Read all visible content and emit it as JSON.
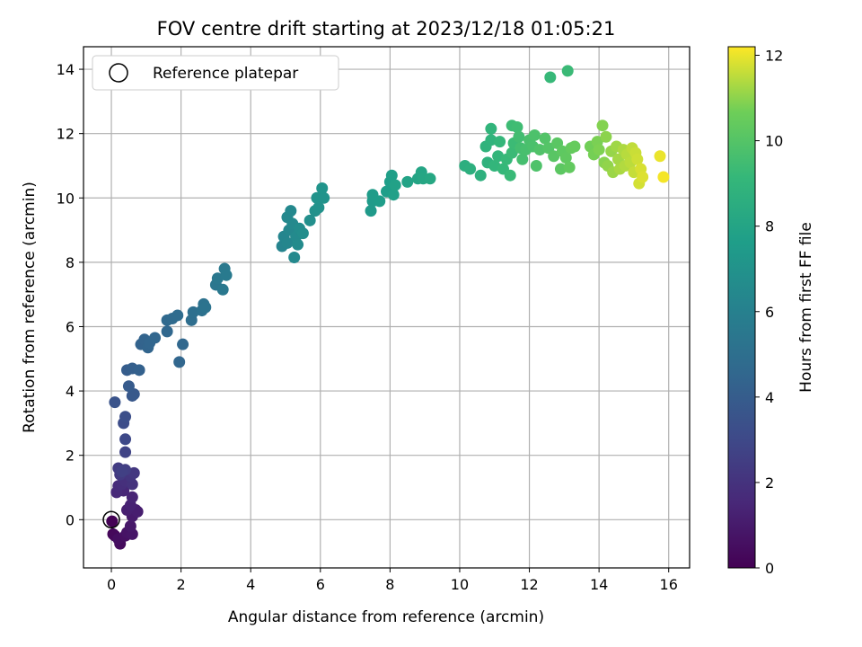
{
  "chart_data": {
    "type": "scatter",
    "title": "FOV centre drift starting at 2023/12/18 01:05:21",
    "xlabel": "Angular distance from reference (arcmin)",
    "ylabel": "Rotation from reference (arcmin)",
    "xlim": [
      -0.8,
      16.6
    ],
    "ylim": [
      -1.5,
      14.7
    ],
    "xticks": [
      0,
      2,
      4,
      6,
      8,
      10,
      12,
      14,
      16
    ],
    "yticks": [
      0,
      2,
      4,
      6,
      8,
      10,
      12,
      14
    ],
    "grid": true,
    "legend": {
      "position": "top-left",
      "entries": [
        "Reference platepar"
      ]
    },
    "reference_point": {
      "x": 0,
      "y": 0
    },
    "colorbar": {
      "label": "Hours from first FF file",
      "range": [
        0,
        12.2
      ],
      "ticks": [
        0,
        2,
        4,
        6,
        8,
        10,
        12
      ],
      "colormap": "viridis"
    },
    "points": [
      {
        "x": 0.02,
        "y": -0.05,
        "c": 0.05
      },
      {
        "x": 0.05,
        "y": -0.45,
        "c": 0.2
      },
      {
        "x": 0.1,
        "y": -0.5,
        "c": 0.3
      },
      {
        "x": 0.25,
        "y": -0.75,
        "c": 0.4
      },
      {
        "x": 0.2,
        "y": -0.6,
        "c": 0.5
      },
      {
        "x": 0.4,
        "y": -0.5,
        "c": 0.6
      },
      {
        "x": 0.45,
        "y": -0.4,
        "c": 0.7
      },
      {
        "x": 0.6,
        "y": -0.45,
        "c": 0.8
      },
      {
        "x": 0.55,
        "y": -0.2,
        "c": 0.9
      },
      {
        "x": 0.6,
        "y": 0.1,
        "c": 1.0
      },
      {
        "x": 0.7,
        "y": 0.3,
        "c": 1.1
      },
      {
        "x": 0.75,
        "y": 0.25,
        "c": 1.15
      },
      {
        "x": 0.45,
        "y": 0.3,
        "c": 1.2
      },
      {
        "x": 0.55,
        "y": 0.45,
        "c": 1.3
      },
      {
        "x": 0.6,
        "y": 0.7,
        "c": 1.4
      },
      {
        "x": 0.35,
        "y": 0.9,
        "c": 1.5
      },
      {
        "x": 0.15,
        "y": 0.85,
        "c": 1.6
      },
      {
        "x": 0.2,
        "y": 1.05,
        "c": 1.7
      },
      {
        "x": 0.3,
        "y": 1.1,
        "c": 1.8
      },
      {
        "x": 0.4,
        "y": 1.2,
        "c": 1.9
      },
      {
        "x": 0.6,
        "y": 1.1,
        "c": 2.0
      },
      {
        "x": 0.55,
        "y": 1.35,
        "c": 2.1
      },
      {
        "x": 0.65,
        "y": 1.45,
        "c": 2.2
      },
      {
        "x": 0.25,
        "y": 1.4,
        "c": 2.3
      },
      {
        "x": 0.2,
        "y": 1.6,
        "c": 2.4
      },
      {
        "x": 0.4,
        "y": 1.55,
        "c": 2.5
      },
      {
        "x": 0.3,
        "y": 1.5,
        "c": 2.6
      },
      {
        "x": 0.4,
        "y": 2.1,
        "c": 2.8
      },
      {
        "x": 0.4,
        "y": 2.5,
        "c": 3.0
      },
      {
        "x": 0.35,
        "y": 3.0,
        "c": 3.2
      },
      {
        "x": 0.4,
        "y": 3.2,
        "c": 3.3
      },
      {
        "x": 0.1,
        "y": 3.65,
        "c": 3.5
      },
      {
        "x": 0.6,
        "y": 3.85,
        "c": 3.7
      },
      {
        "x": 0.65,
        "y": 3.9,
        "c": 3.8
      },
      {
        "x": 0.5,
        "y": 4.15,
        "c": 3.9
      },
      {
        "x": 0.45,
        "y": 4.65,
        "c": 4.0
      },
      {
        "x": 0.6,
        "y": 4.7,
        "c": 4.1
      },
      {
        "x": 0.8,
        "y": 4.65,
        "c": 4.2
      },
      {
        "x": 0.85,
        "y": 5.45,
        "c": 4.3
      },
      {
        "x": 0.95,
        "y": 5.6,
        "c": 4.35
      },
      {
        "x": 1.05,
        "y": 5.35,
        "c": 4.4
      },
      {
        "x": 1.1,
        "y": 5.5,
        "c": 4.45
      },
      {
        "x": 1.25,
        "y": 5.65,
        "c": 4.5
      },
      {
        "x": 1.6,
        "y": 5.85,
        "c": 4.6
      },
      {
        "x": 1.6,
        "y": 6.2,
        "c": 4.7
      },
      {
        "x": 1.75,
        "y": 6.25,
        "c": 4.75
      },
      {
        "x": 1.9,
        "y": 6.35,
        "c": 4.8
      },
      {
        "x": 1.95,
        "y": 4.9,
        "c": 4.5
      },
      {
        "x": 2.05,
        "y": 5.45,
        "c": 4.6
      },
      {
        "x": 2.3,
        "y": 6.2,
        "c": 4.9
      },
      {
        "x": 2.35,
        "y": 6.45,
        "c": 5.0
      },
      {
        "x": 2.6,
        "y": 6.5,
        "c": 5.1
      },
      {
        "x": 2.65,
        "y": 6.7,
        "c": 5.15
      },
      {
        "x": 2.7,
        "y": 6.6,
        "c": 5.2
      },
      {
        "x": 3.0,
        "y": 7.3,
        "c": 5.4
      },
      {
        "x": 3.05,
        "y": 7.5,
        "c": 5.5
      },
      {
        "x": 3.2,
        "y": 7.15,
        "c": 5.5
      },
      {
        "x": 3.25,
        "y": 7.8,
        "c": 5.6
      },
      {
        "x": 3.3,
        "y": 7.6,
        "c": 5.65
      },
      {
        "x": 4.9,
        "y": 8.5,
        "c": 6.2
      },
      {
        "x": 4.95,
        "y": 8.8,
        "c": 6.25
      },
      {
        "x": 5.05,
        "y": 8.6,
        "c": 6.3
      },
      {
        "x": 5.1,
        "y": 9.0,
        "c": 6.35
      },
      {
        "x": 5.05,
        "y": 9.4,
        "c": 6.4
      },
      {
        "x": 5.15,
        "y": 9.6,
        "c": 6.45
      },
      {
        "x": 5.2,
        "y": 9.2,
        "c": 6.5
      },
      {
        "x": 5.25,
        "y": 8.15,
        "c": 6.5
      },
      {
        "x": 5.3,
        "y": 8.8,
        "c": 6.55
      },
      {
        "x": 5.35,
        "y": 8.55,
        "c": 6.6
      },
      {
        "x": 5.4,
        "y": 9.05,
        "c": 6.65
      },
      {
        "x": 5.5,
        "y": 8.9,
        "c": 6.7
      },
      {
        "x": 5.7,
        "y": 9.3,
        "c": 6.8
      },
      {
        "x": 5.85,
        "y": 9.6,
        "c": 6.9
      },
      {
        "x": 5.95,
        "y": 9.7,
        "c": 6.95
      },
      {
        "x": 5.9,
        "y": 10.0,
        "c": 7.0
      },
      {
        "x": 6.1,
        "y": 10.0,
        "c": 7.05
      },
      {
        "x": 6.05,
        "y": 10.3,
        "c": 7.1
      },
      {
        "x": 7.45,
        "y": 9.6,
        "c": 7.4
      },
      {
        "x": 7.5,
        "y": 9.9,
        "c": 7.45
      },
      {
        "x": 7.5,
        "y": 10.1,
        "c": 7.5
      },
      {
        "x": 7.7,
        "y": 9.9,
        "c": 7.55
      },
      {
        "x": 7.9,
        "y": 10.2,
        "c": 7.6
      },
      {
        "x": 8.0,
        "y": 10.5,
        "c": 7.65
      },
      {
        "x": 8.05,
        "y": 10.7,
        "c": 7.7
      },
      {
        "x": 8.1,
        "y": 10.1,
        "c": 7.75
      },
      {
        "x": 8.15,
        "y": 10.4,
        "c": 7.8
      },
      {
        "x": 8.5,
        "y": 10.5,
        "c": 7.9
      },
      {
        "x": 8.8,
        "y": 10.6,
        "c": 8.0
      },
      {
        "x": 8.9,
        "y": 10.8,
        "c": 8.05
      },
      {
        "x": 8.95,
        "y": 10.6,
        "c": 8.1
      },
      {
        "x": 9.15,
        "y": 10.6,
        "c": 8.15
      },
      {
        "x": 10.15,
        "y": 11.0,
        "c": 8.6
      },
      {
        "x": 10.3,
        "y": 10.9,
        "c": 8.65
      },
      {
        "x": 10.6,
        "y": 10.7,
        "c": 8.7
      },
      {
        "x": 10.8,
        "y": 11.1,
        "c": 8.8
      },
      {
        "x": 10.75,
        "y": 11.6,
        "c": 8.85
      },
      {
        "x": 10.9,
        "y": 11.8,
        "c": 8.9
      },
      {
        "x": 10.9,
        "y": 12.15,
        "c": 8.95
      },
      {
        "x": 11.0,
        "y": 11.0,
        "c": 9.0
      },
      {
        "x": 11.1,
        "y": 11.3,
        "c": 9.05
      },
      {
        "x": 11.15,
        "y": 11.75,
        "c": 9.1
      },
      {
        "x": 11.25,
        "y": 10.9,
        "c": 9.15
      },
      {
        "x": 11.35,
        "y": 11.2,
        "c": 9.2
      },
      {
        "x": 11.45,
        "y": 10.7,
        "c": 9.25
      },
      {
        "x": 11.5,
        "y": 11.4,
        "c": 9.3
      },
      {
        "x": 11.55,
        "y": 11.7,
        "c": 9.35
      },
      {
        "x": 11.5,
        "y": 12.25,
        "c": 9.4
      },
      {
        "x": 11.65,
        "y": 12.2,
        "c": 9.45
      },
      {
        "x": 11.7,
        "y": 11.9,
        "c": 9.5
      },
      {
        "x": 11.75,
        "y": 11.55,
        "c": 9.55
      },
      {
        "x": 11.8,
        "y": 11.2,
        "c": 9.6
      },
      {
        "x": 11.9,
        "y": 11.5,
        "c": 9.65
      },
      {
        "x": 12.0,
        "y": 11.8,
        "c": 9.7
      },
      {
        "x": 12.1,
        "y": 11.6,
        "c": 9.75
      },
      {
        "x": 12.15,
        "y": 11.95,
        "c": 9.8
      },
      {
        "x": 12.2,
        "y": 11.0,
        "c": 9.85
      },
      {
        "x": 12.3,
        "y": 11.5,
        "c": 9.9
      },
      {
        "x": 12.45,
        "y": 11.85,
        "c": 9.95
      },
      {
        "x": 12.55,
        "y": 11.55,
        "c": 10.0
      },
      {
        "x": 12.6,
        "y": 13.75,
        "c": 9.2
      },
      {
        "x": 13.1,
        "y": 13.95,
        "c": 9.3
      },
      {
        "x": 12.7,
        "y": 11.3,
        "c": 10.1
      },
      {
        "x": 12.8,
        "y": 11.7,
        "c": 10.15
      },
      {
        "x": 12.9,
        "y": 10.9,
        "c": 10.2
      },
      {
        "x": 12.95,
        "y": 11.45,
        "c": 10.25
      },
      {
        "x": 13.05,
        "y": 11.25,
        "c": 10.3
      },
      {
        "x": 13.15,
        "y": 10.95,
        "c": 10.35
      },
      {
        "x": 13.2,
        "y": 11.55,
        "c": 10.4
      },
      {
        "x": 13.3,
        "y": 11.6,
        "c": 10.45
      },
      {
        "x": 13.75,
        "y": 11.6,
        "c": 10.7
      },
      {
        "x": 13.85,
        "y": 11.35,
        "c": 10.75
      },
      {
        "x": 13.95,
        "y": 11.75,
        "c": 10.8
      },
      {
        "x": 14.0,
        "y": 11.5,
        "c": 10.85
      },
      {
        "x": 14.1,
        "y": 12.25,
        "c": 10.9
      },
      {
        "x": 14.15,
        "y": 11.1,
        "c": 10.95
      },
      {
        "x": 14.2,
        "y": 11.9,
        "c": 11.0
      },
      {
        "x": 14.25,
        "y": 11.0,
        "c": 11.05
      },
      {
        "x": 14.35,
        "y": 11.45,
        "c": 11.1
      },
      {
        "x": 14.4,
        "y": 10.8,
        "c": 11.15
      },
      {
        "x": 14.5,
        "y": 11.6,
        "c": 11.2
      },
      {
        "x": 14.55,
        "y": 11.2,
        "c": 11.25
      },
      {
        "x": 14.6,
        "y": 10.9,
        "c": 11.3
      },
      {
        "x": 14.7,
        "y": 11.5,
        "c": 11.35
      },
      {
        "x": 14.75,
        "y": 11.0,
        "c": 11.4
      },
      {
        "x": 14.8,
        "y": 11.35,
        "c": 11.45
      },
      {
        "x": 14.9,
        "y": 11.1,
        "c": 11.5
      },
      {
        "x": 14.95,
        "y": 11.55,
        "c": 11.55
      },
      {
        "x": 15.0,
        "y": 10.8,
        "c": 11.6
      },
      {
        "x": 15.05,
        "y": 11.4,
        "c": 11.65
      },
      {
        "x": 15.1,
        "y": 11.2,
        "c": 11.7
      },
      {
        "x": 15.15,
        "y": 10.45,
        "c": 11.75
      },
      {
        "x": 15.2,
        "y": 10.9,
        "c": 11.8
      },
      {
        "x": 15.25,
        "y": 10.65,
        "c": 11.85
      },
      {
        "x": 15.75,
        "y": 11.3,
        "c": 12.0
      },
      {
        "x": 15.85,
        "y": 10.65,
        "c": 12.1
      }
    ]
  }
}
